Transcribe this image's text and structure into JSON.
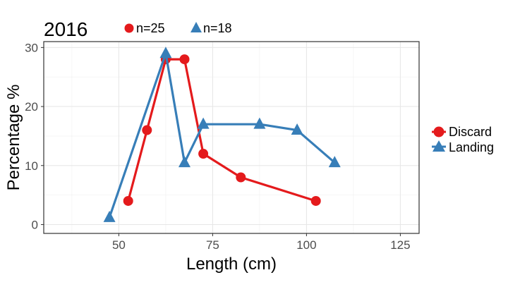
{
  "chart_data": {
    "type": "line",
    "title": "2016",
    "xlabel": "Length (cm)",
    "ylabel": "Percentage %",
    "xlim": [
      30,
      130
    ],
    "ylim": [
      -1.5,
      31
    ],
    "xticks": [
      50,
      75,
      100,
      125
    ],
    "yticks": [
      0,
      10,
      20,
      30
    ],
    "grid": true,
    "legend_position": "right",
    "series": [
      {
        "name": "Discard",
        "count_label": "n=25",
        "color": "#e41a1c",
        "marker": "circle",
        "x": [
          52.5,
          57.5,
          62.5,
          67.5,
          72.5,
          82.5,
          102.5
        ],
        "y": [
          4,
          16,
          28,
          28,
          12,
          8,
          4
        ]
      },
      {
        "name": "Landing",
        "count_label": "n=18",
        "color": "#377eb8",
        "marker": "triangle",
        "x": [
          47.5,
          62.5,
          67.5,
          72.5,
          87.5,
          97.5,
          107.5
        ],
        "y": [
          1.2,
          29,
          10.5,
          17,
          17,
          16,
          10.5
        ]
      }
    ]
  }
}
